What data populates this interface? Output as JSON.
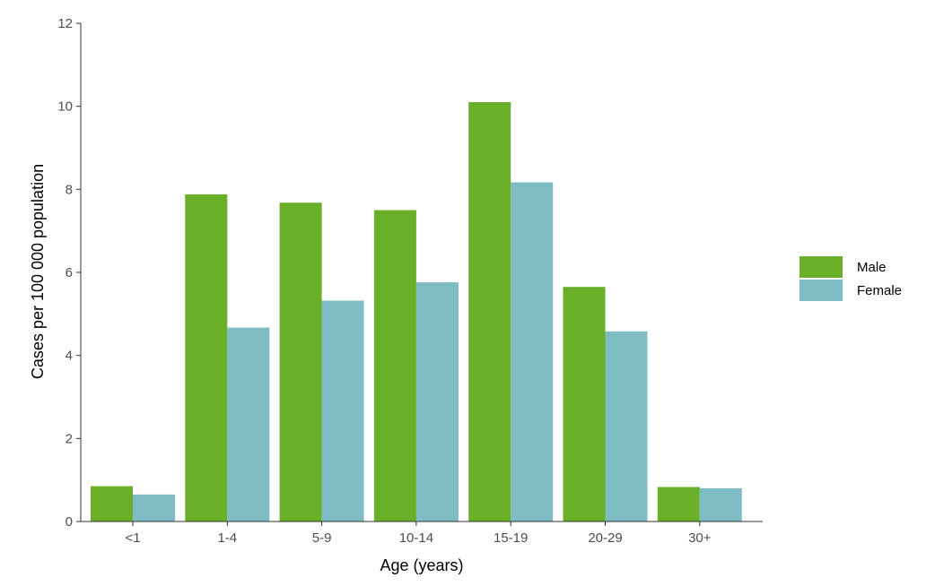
{
  "chart_data": {
    "type": "bar",
    "title": "",
    "xlabel": "Age (years)",
    "ylabel": "Cases per 100 000 population",
    "categories": [
      "<1",
      "1-4",
      "5-9",
      "10-14",
      "15-19",
      "20-29",
      "30+"
    ],
    "series": [
      {
        "name": "Male",
        "color": "#6aaf28",
        "values": [
          0.85,
          7.88,
          7.68,
          7.5,
          10.1,
          5.65,
          0.83
        ]
      },
      {
        "name": "Female",
        "color": "#7dbdc3",
        "values": [
          0.65,
          4.67,
          5.32,
          5.76,
          8.17,
          4.58,
          0.8
        ]
      }
    ],
    "ylim": [
      0,
      12
    ],
    "yticks": [
      0,
      2,
      4,
      6,
      8,
      10,
      12
    ],
    "grid": false,
    "legend_position": "right"
  }
}
